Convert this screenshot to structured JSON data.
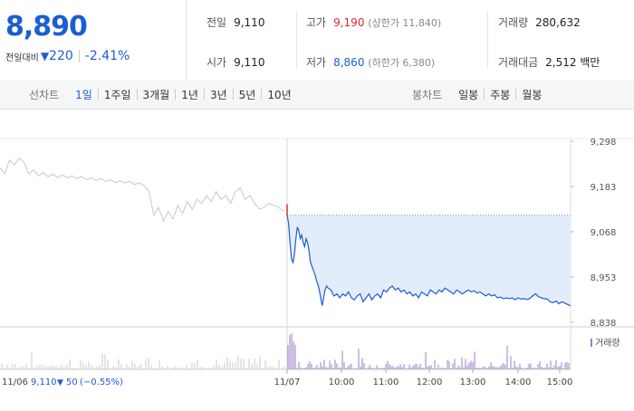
{
  "header": {
    "price": "8,890",
    "change_label": "전일대비",
    "change_arrow": "▼",
    "change_amount": "220",
    "change_pct": "-2.41%",
    "stats": {
      "prev_close": {
        "label": "전일",
        "value": "9,110"
      },
      "open": {
        "label": "시가",
        "value": "9,110"
      },
      "high": {
        "label": "고가",
        "value": "9,190",
        "sub": "(상한가 11,840)"
      },
      "low": {
        "label": "저가",
        "value": "8,860",
        "sub": "(하한가 6,380)"
      },
      "volume": {
        "label": "거래량",
        "value": "280,632"
      },
      "trade_value": {
        "label": "거래대금",
        "value": "2,512 백만"
      }
    }
  },
  "tabs": {
    "line_label": "선차트",
    "line_tabs": [
      "1일",
      "1주일",
      "3개월",
      "1년",
      "3년",
      "5년",
      "10년"
    ],
    "active_line_tab": "1일",
    "candle_label": "봉차트",
    "candle_tabs": [
      "일봉",
      "주봉",
      "월봉"
    ]
  },
  "colors": {
    "accent": "#1a5fd1",
    "up": "#e22828",
    "prev_day_line": "#c8c8c8",
    "fill": "#e3ecfb",
    "volume_today": "#9b7fc7"
  },
  "chart_data": {
    "type": "line",
    "y_ticks": [
      "9,298",
      "9,183",
      "9,068",
      "8,953",
      "8,838"
    ],
    "ylim": [
      8838,
      9298
    ],
    "x_ticks": [
      "11/07",
      "10:00",
      "11:00",
      "12:00",
      "13:00",
      "14:00",
      "15:00"
    ],
    "volume_legend": "거래량",
    "prev_day_info": {
      "date": "11/06",
      "close": "9,110",
      "arrow": "▼",
      "change": "50",
      "pct": "(−0.55%)"
    },
    "reference_level": 9110,
    "series": [
      {
        "name": "11/06",
        "points": [
          [
            0,
            9230
          ],
          [
            3,
            9215
          ],
          [
            6,
            9250
          ],
          [
            9,
            9238
          ],
          [
            12,
            9255
          ],
          [
            15,
            9245
          ],
          [
            18,
            9215
          ],
          [
            21,
            9225
          ],
          [
            24,
            9210
          ],
          [
            27,
            9218
          ],
          [
            30,
            9208
          ],
          [
            33,
            9214
          ],
          [
            36,
            9206
          ],
          [
            39,
            9212
          ],
          [
            42,
            9205
          ],
          [
            45,
            9210
          ],
          [
            48,
            9203
          ],
          [
            51,
            9208
          ],
          [
            54,
            9200
          ],
          [
            57,
            9205
          ],
          [
            60,
            9198
          ],
          [
            63,
            9203
          ],
          [
            66,
            9196
          ],
          [
            69,
            9200
          ],
          [
            72,
            9193
          ],
          [
            75,
            9198
          ],
          [
            78,
            9192
          ],
          [
            81,
            9196
          ],
          [
            84,
            9188
          ],
          [
            87,
            9192
          ],
          [
            90,
            9185
          ],
          [
            93,
            9170
          ],
          [
            96,
            9110
          ],
          [
            99,
            9130
          ],
          [
            102,
            9095
          ],
          [
            105,
            9120
          ],
          [
            108,
            9100
          ],
          [
            111,
            9135
          ],
          [
            114,
            9115
          ],
          [
            117,
            9145
          ],
          [
            120,
            9125
          ],
          [
            123,
            9150
          ],
          [
            126,
            9140
          ],
          [
            129,
            9160
          ],
          [
            132,
            9145
          ],
          [
            135,
            9170
          ],
          [
            138,
            9150
          ],
          [
            141,
            9160
          ],
          [
            144,
            9140
          ],
          [
            147,
            9170
          ],
          [
            150,
            9180
          ],
          [
            153,
            9150
          ],
          [
            156,
            9160
          ],
          [
            159,
            9140
          ],
          [
            162,
            9125
          ],
          [
            165,
            9130
          ],
          [
            168,
            9140
          ],
          [
            171,
            9135
          ],
          [
            174,
            9130
          ],
          [
            177,
            9120
          ]
        ]
      },
      {
        "name": "11/07",
        "points": [
          [
            0,
            9110
          ],
          [
            1,
            9090
          ],
          [
            2,
            9040
          ],
          [
            3,
            9000
          ],
          [
            4,
            8990
          ],
          [
            5,
            9010
          ],
          [
            6,
            9050
          ],
          [
            7,
            9080
          ],
          [
            8,
            9070
          ],
          [
            9,
            9050
          ],
          [
            10,
            9060
          ],
          [
            11,
            9040
          ],
          [
            12,
            9030
          ],
          [
            13,
            9050
          ],
          [
            14,
            9040
          ],
          [
            15,
            9020
          ],
          [
            16,
            8990
          ],
          [
            17,
            8980
          ],
          [
            18,
            8970
          ],
          [
            19,
            8960
          ],
          [
            20,
            8945
          ],
          [
            21,
            8935
          ],
          [
            22,
            8920
          ],
          [
            23,
            8900
          ],
          [
            24,
            8880
          ],
          [
            25,
            8900
          ],
          [
            26,
            8920
          ],
          [
            27,
            8930
          ],
          [
            28,
            8925
          ],
          [
            30,
            8920
          ],
          [
            32,
            8905
          ],
          [
            34,
            8910
          ],
          [
            36,
            8900
          ],
          [
            38,
            8910
          ],
          [
            40,
            8905
          ],
          [
            42,
            8915
          ],
          [
            44,
            8900
          ],
          [
            46,
            8895
          ],
          [
            48,
            8905
          ],
          [
            50,
            8910
          ],
          [
            52,
            8890
          ],
          [
            54,
            8900
          ],
          [
            56,
            8910
          ],
          [
            58,
            8895
          ],
          [
            60,
            8905
          ],
          [
            62,
            8910
          ],
          [
            64,
            8900
          ],
          [
            66,
            8920
          ],
          [
            68,
            8915
          ],
          [
            70,
            8925
          ],
          [
            72,
            8930
          ],
          [
            74,
            8920
          ],
          [
            76,
            8925
          ],
          [
            78,
            8915
          ],
          [
            80,
            8920
          ],
          [
            82,
            8910
          ],
          [
            84,
            8915
          ],
          [
            86,
            8905
          ],
          [
            88,
            8910
          ],
          [
            90,
            8900
          ],
          [
            92,
            8915
          ],
          [
            94,
            8910
          ],
          [
            96,
            8905
          ],
          [
            98,
            8920
          ],
          [
            100,
            8915
          ],
          [
            102,
            8910
          ],
          [
            104,
            8920
          ],
          [
            106,
            8915
          ],
          [
            108,
            8925
          ],
          [
            110,
            8920
          ],
          [
            112,
            8915
          ],
          [
            114,
            8910
          ],
          [
            116,
            8920
          ],
          [
            118,
            8915
          ],
          [
            120,
            8910
          ],
          [
            122,
            8915
          ],
          [
            124,
            8920
          ],
          [
            126,
            8915
          ],
          [
            128,
            8918
          ],
          [
            130,
            8912
          ],
          [
            132,
            8915
          ],
          [
            134,
            8910
          ],
          [
            136,
            8905
          ],
          [
            138,
            8910
          ],
          [
            140,
            8905
          ],
          [
            142,
            8908
          ],
          [
            144,
            8900
          ],
          [
            146,
            8902
          ],
          [
            148,
            8898
          ],
          [
            150,
            8900
          ],
          [
            152,
            8898
          ],
          [
            154,
            8900
          ],
          [
            156,
            8895
          ],
          [
            158,
            8900
          ],
          [
            160,
            8897
          ],
          [
            162,
            8898
          ],
          [
            164,
            8896
          ],
          [
            166,
            8898
          ],
          [
            168,
            8905
          ],
          [
            170,
            8910
          ],
          [
            172,
            8903
          ],
          [
            174,
            8900
          ],
          [
            176,
            8898
          ],
          [
            178,
            8897
          ],
          [
            180,
            8890
          ],
          [
            182,
            8888
          ],
          [
            184,
            8892
          ],
          [
            186,
            8885
          ],
          [
            188,
            8890
          ],
          [
            190,
            8887
          ],
          [
            192,
            8883
          ],
          [
            194,
            8880
          ]
        ]
      }
    ]
  }
}
